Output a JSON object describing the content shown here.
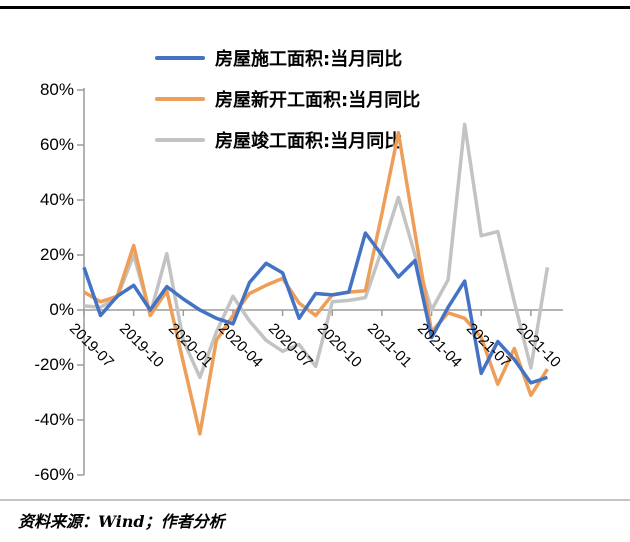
{
  "page": {
    "source_note": "资料来源：Wind；作者分析"
  },
  "legend": [
    {
      "label": "房屋施工面积:当月同比",
      "color": "#4472C4"
    },
    {
      "label": "房屋新开工面积:当月同比",
      "color": "#ED9E58"
    },
    {
      "label": "房屋竣工面积:当月同比",
      "color": "#C3C3C3"
    }
  ],
  "chart_data": {
    "type": "line",
    "title": "",
    "xlabel": "",
    "ylabel": "",
    "grid": false,
    "legend_position": "top-center",
    "ylim": [
      -60,
      80
    ],
    "y_ticks": [
      80,
      60,
      40,
      20,
      0,
      -20,
      -40,
      -60
    ],
    "y_tick_labels": [
      "80%",
      "60%",
      "40%",
      "20%",
      "0%",
      "-20%",
      "-40%",
      "-60%"
    ],
    "x": [
      "2019-07",
      "2019-08",
      "2019-09",
      "2019-10",
      "2019-11",
      "2019-12",
      "2020-01",
      "2020-02",
      "2020-03",
      "2020-04",
      "2020-05",
      "2020-06",
      "2020-07",
      "2020-08",
      "2020-09",
      "2020-10",
      "2020-11",
      "2020-12",
      "2021-01",
      "2021-02",
      "2021-03",
      "2021-04",
      "2021-05",
      "2021-06",
      "2021-07",
      "2021-08",
      "2021-09",
      "2021-10",
      "2021-11"
    ],
    "x_tick_indices": [
      0,
      3,
      6,
      9,
      12,
      15,
      18,
      21,
      24,
      27
    ],
    "x_tick_labels": [
      "2019-07",
      "2019-10",
      "2020-01",
      "2020-04",
      "2020-07",
      "2020-10",
      "2021-01",
      "2021-04",
      "2021-07",
      "2021-10"
    ],
    "series": [
      {
        "name": "房屋施工面积:当月同比",
        "color": "#4472C4",
        "values": [
          15.5,
          -2,
          5,
          9,
          0,
          8.5,
          4,
          0,
          -3,
          -5,
          10,
          17,
          13.5,
          -3,
          6,
          5.5,
          6.5,
          28,
          20,
          12,
          18,
          -10,
          1,
          10.5,
          -23,
          -11.5,
          -18,
          -26.5,
          -24.5
        ]
      },
      {
        "name": "房屋新开工面积:当月同比",
        "color": "#ED9E58",
        "values": [
          6.5,
          3,
          5,
          23.5,
          -2,
          7,
          -19,
          -45,
          -11,
          -2,
          6,
          9,
          11.5,
          2.5,
          -2,
          5.5,
          6.5,
          7,
          35,
          64.5,
          28,
          -8,
          -1,
          -3,
          -10,
          -27,
          -14,
          -31,
          -21.5
        ]
      },
      {
        "name": "房屋竣工面积:当月同比",
        "color": "#C3C3C3",
        "values": [
          1.5,
          1,
          4.5,
          20,
          -1.5,
          20.5,
          -11,
          -24.5,
          -8,
          5,
          -4,
          -11,
          -15,
          -12.5,
          -20.5,
          3,
          3.5,
          4.5,
          22,
          41,
          20,
          0,
          11,
          67.5,
          27,
          28.5,
          3,
          -21,
          15.5
        ]
      }
    ],
    "axis_color": "#9b9b9b",
    "line_width": 3.5
  }
}
